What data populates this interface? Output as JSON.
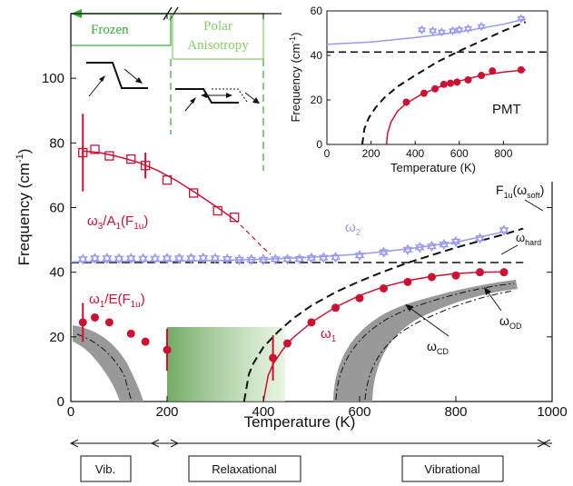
{
  "chart_data": [
    {
      "type": "scatter",
      "xlabel": "Temperature (K)",
      "ylabel": "Frequency (cm",
      "ylabel_sup": "-1",
      "ylabel_close": ")",
      "xlim": [
        0,
        1000
      ],
      "ylim": [
        0,
        120
      ],
      "xticks": [
        0,
        200,
        400,
        600,
        800,
        1000
      ],
      "yticks": [
        0,
        20,
        40,
        60,
        80,
        100
      ],
      "grid": false,
      "colors": {
        "red": "#cc1133",
        "blue": "#9999ee",
        "black": "#111111",
        "green": "#33aa33",
        "lightgreen": "#88cc66",
        "gray": "#999999"
      },
      "series": [
        {
          "key": "w3",
          "marker": "open-square",
          "color": "#cc1133",
          "x": [
            25,
            50,
            80,
            125,
            155,
            200,
            255,
            305,
            340
          ],
          "y": [
            77,
            78,
            76,
            75,
            73,
            68.5,
            64.5,
            59,
            57
          ],
          "yerr": [
            [
              25,
              12
            ],
            [
              155,
              4
            ],
            [
              25,
              2
            ]
          ],
          "fit_x": [
            25,
            60,
            100,
            140,
            180,
            220,
            260,
            300,
            340
          ],
          "fit_y": [
            77.5,
            77,
            75.7,
            74,
            71.5,
            68.3,
            64.5,
            60.5,
            56.3
          ],
          "extrap_x": [
            340,
            360,
            380,
            400,
            415
          ],
          "extrap_y": [
            56.3,
            53.5,
            50.5,
            47.5,
            45.5
          ]
        },
        {
          "key": "w2",
          "marker": "open-star",
          "color": "#9999ee",
          "x": [
            25,
            50,
            75,
            100,
            125,
            150,
            175,
            200,
            225,
            250,
            275,
            300,
            325,
            350,
            375,
            400,
            425,
            450,
            475,
            500,
            525,
            550,
            600,
            650,
            700,
            725,
            750,
            775,
            800,
            850,
            900
          ],
          "y": [
            44,
            44.3,
            44.3,
            44.2,
            44.3,
            44.2,
            44.2,
            44.3,
            44.3,
            44.3,
            44.4,
            44.3,
            44.1,
            43.9,
            43.9,
            43.9,
            44,
            44,
            44.1,
            44.4,
            44.5,
            44.6,
            45.2,
            46.2,
            47,
            47.7,
            48,
            48.6,
            49.5,
            50.5,
            53
          ],
          "fit_x": [
            0,
            100,
            200,
            300,
            400,
            500,
            600,
            700,
            800,
            900
          ],
          "fit_y": [
            43.2,
            43.3,
            43.4,
            43.6,
            44,
            44.6,
            45.6,
            47.2,
            49.3,
            52.5
          ]
        },
        {
          "key": "w1",
          "marker": "filled-circle",
          "color": "#cc1133",
          "x": [
            25,
            50,
            80,
            125,
            155,
            200,
            420,
            450,
            500,
            550,
            600,
            650,
            700,
            750,
            800,
            850,
            900
          ],
          "y": [
            24.5,
            26,
            24.5,
            21,
            18.5,
            16,
            13.5,
            18,
            24.5,
            29,
            32,
            35,
            37,
            38.5,
            39,
            40,
            40
          ],
          "yerr": [
            [
              25,
              6
            ],
            [
              200,
              6.5
            ],
            [
              420,
              7
            ]
          ],
          "fit_x": [
            400,
            410,
            420,
            440,
            460,
            500,
            550,
            600,
            650,
            700,
            750,
            800,
            850,
            900
          ],
          "fit_y": [
            0,
            8,
            11.5,
            16,
            19.5,
            24.5,
            29.2,
            32.8,
            35.5,
            37.4,
            38.7,
            39.6,
            40,
            40.1
          ]
        }
      ],
      "curves": {
        "soft_x": [
          360,
          370,
          380,
          400,
          430,
          460,
          500,
          550,
          600,
          650,
          700,
          750,
          800,
          850,
          900,
          940
        ],
        "soft_y": [
          0,
          8.5,
          12,
          16.8,
          21.5,
          25.5,
          29.7,
          33.8,
          37.2,
          40.2,
          42.9,
          45.3,
          47.6,
          49.7,
          51.7,
          53.5
        ],
        "hard_y": 43
      },
      "annotations": {
        "w3_label": "ω",
        "w3_sub": "3",
        "w3_rest": "/A",
        "w3_sub2": "1",
        "w3_rest2": "(F",
        "w3_sub3": "1u",
        "w3_rest3": ")",
        "w2_label": "ω",
        "w2_sub": "2",
        "w1_main_label": "ω",
        "w1_main_sub": "1",
        "w1e_label": "ω",
        "w1e_sub": "1",
        "w1e_rest": "/E(F",
        "w1e_sub2": "1u",
        "w1e_rest2": ")",
        "soft_label": "F",
        "soft_sub": "1u",
        "soft_rest": "(ω",
        "soft_sub2": "soft",
        "soft_rest2": ")",
        "hard_label": "ω",
        "hard_sub": "hard",
        "cd_label": "ω",
        "cd_sub": "CD",
        "od_label": "ω",
        "od_sub": "OD"
      },
      "regions": {
        "frozen": "Frozen",
        "polar_1": "Polar",
        "polar_2": "Anisotropy"
      },
      "regimes": {
        "vib_left": "Vib.",
        "relax": "Relaxational",
        "vib_right": "Vibrational"
      }
    },
    {
      "type": "scatter",
      "title_label": "PMT",
      "xlabel": "Temperature (K)",
      "ylabel": "Frequency (cm",
      "ylabel_sup": "-1",
      "ylabel_close": ")",
      "xlim": [
        0,
        1000
      ],
      "ylim": [
        0,
        60
      ],
      "xticks": [
        0,
        200,
        400,
        600,
        800
      ],
      "yticks": [
        0,
        20,
        40,
        60
      ],
      "series": [
        {
          "key": "blue",
          "marker": "open-star",
          "color": "#9999ee",
          "x": [
            430,
            480,
            520,
            570,
            600,
            640,
            700,
            880
          ],
          "y": [
            51.5,
            51,
            50.5,
            51,
            51.5,
            52,
            53,
            56.5
          ],
          "fit_x": [
            0,
            200,
            400,
            600,
            800,
            900
          ],
          "fit_y": [
            45,
            46,
            48,
            50.5,
            54,
            56.5
          ]
        },
        {
          "key": "red",
          "marker": "filled-circle",
          "color": "#cc1133",
          "x": [
            360,
            440,
            490,
            530,
            560,
            590,
            640,
            700,
            750,
            880
          ],
          "y": [
            19,
            23,
            25,
            27,
            27.5,
            28,
            29,
            31,
            33,
            33.5
          ],
          "fit_x": [
            270,
            275,
            290,
            320,
            360,
            420,
            500,
            600,
            700,
            800,
            900
          ],
          "fit_y": [
            0,
            5,
            10,
            15,
            18.5,
            22,
            25.5,
            28.5,
            31,
            32.5,
            33.5
          ]
        }
      ],
      "curves": {
        "soft_x": [
          160,
          170,
          190,
          220,
          260,
          320,
          400,
          500,
          600,
          700,
          800,
          900
        ],
        "soft_y": [
          0,
          7,
          12,
          16.5,
          21,
          26,
          31,
          37,
          42,
          46.5,
          51,
          55
        ],
        "hard_y": 41.5
      }
    }
  ]
}
